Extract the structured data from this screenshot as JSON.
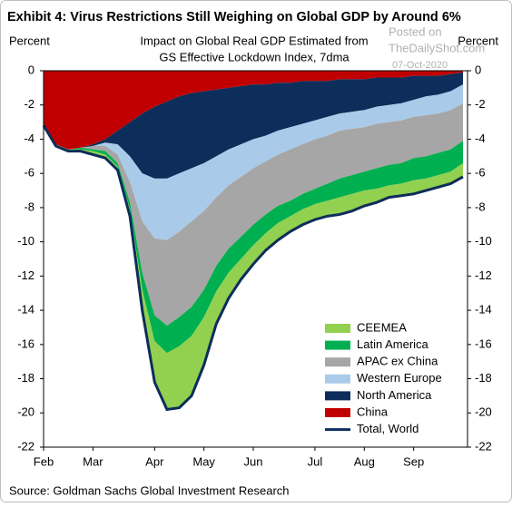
{
  "chart_data": {
    "type": "stacked_area",
    "title": "Exhibit 4: Virus Restrictions Still Weighing on Global GDP by Around 6%",
    "subtitle": [
      "Impact on Global Real GDP Estimated from",
      "GS Effective Lockdown Index, 7dma"
    ],
    "y_label": "Percent",
    "y2_label": "Percent",
    "source": "Source: Goldman Sachs Global Investment Research",
    "watermark": [
      "Posted on",
      "TheDailyShot.com",
      "07-Oct-2020"
    ],
    "categories": [
      "Feb",
      null,
      null,
      null,
      "Mar",
      null,
      null,
      null,
      null,
      "Apr",
      null,
      null,
      null,
      "May",
      null,
      null,
      null,
      "Jun",
      null,
      null,
      null,
      null,
      "Jul",
      null,
      null,
      null,
      "Aug",
      null,
      null,
      null,
      "Sep",
      null,
      null,
      null,
      null
    ],
    "series": [
      {
        "name": "CEEMEA",
        "color": "#92d050",
        "values": [
          0,
          -0.1,
          -0.1,
          -0.1,
          -0.2,
          -0.2,
          -0.2,
          -0.4,
          -1.2,
          -2.4,
          -3.3,
          -3.6,
          -3.5,
          -2.8,
          -1.9,
          -1.5,
          -1.2,
          -1.1,
          -1.0,
          -1.0,
          -0.9,
          -0.9,
          -0.9,
          -0.9,
          -1.0,
          -1.0,
          -0.9,
          -0.8,
          -0.7,
          -0.7,
          -0.8,
          -0.7,
          -0.7,
          -0.7,
          -0.8
        ]
      },
      {
        "name": "Latin America",
        "color": "#00b050",
        "values": [
          0,
          0,
          0,
          -0.1,
          -0.1,
          -0.2,
          -0.2,
          -0.4,
          -1.0,
          -1.5,
          -1.6,
          -1.7,
          -1.7,
          -1.6,
          -1.5,
          -1.4,
          -1.3,
          -1.2,
          -1.1,
          -1.0,
          -0.9,
          -0.9,
          -0.9,
          -1.0,
          -1.1,
          -1.1,
          -1.1,
          -1.2,
          -1.2,
          -1.2,
          -1.3,
          -1.3,
          -1.3,
          -1.3,
          -1.3
        ]
      },
      {
        "name": "APAC ex China",
        "color": "#a6a6a6",
        "values": [
          0,
          0,
          0,
          0,
          -0.2,
          -0.3,
          -0.5,
          -1.2,
          -3.0,
          -4.5,
          -5.0,
          -5.0,
          -5.0,
          -4.6,
          -4.0,
          -3.7,
          -3.5,
          -3.3,
          -3.1,
          -3.0,
          -3.0,
          -2.9,
          -2.9,
          -2.8,
          -2.8,
          -2.7,
          -2.6,
          -2.6,
          -2.5,
          -2.5,
          -2.4,
          -2.4,
          -2.3,
          -2.3,
          -2.2
        ]
      },
      {
        "name": "Western Europe",
        "color": "#a9cbe9",
        "values": [
          0,
          0,
          0,
          0,
          0,
          -0.2,
          -0.6,
          -1.5,
          -2.8,
          -3.5,
          -3.6,
          -3.4,
          -3.1,
          -2.8,
          -2.4,
          -2.1,
          -1.9,
          -1.7,
          -1.5,
          -1.4,
          -1.3,
          -1.2,
          -1.1,
          -1.1,
          -1.0,
          -1.0,
          -1.0,
          -1.0,
          -1.0,
          -1.0,
          -1.0,
          -1.1,
          -1.1,
          -1.1,
          -1.1
        ]
      },
      {
        "name": "North America",
        "color": "#0d2d5a",
        "values": [
          0,
          0,
          0,
          0,
          -0.1,
          -0.2,
          -0.8,
          -2.0,
          -3.5,
          -4.2,
          -4.5,
          -4.5,
          -4.4,
          -4.2,
          -3.9,
          -3.6,
          -3.4,
          -3.2,
          -3.0,
          -2.8,
          -2.6,
          -2.5,
          -2.3,
          -2.1,
          -2.0,
          -1.9,
          -1.8,
          -1.7,
          -1.6,
          -1.5,
          -1.4,
          -1.2,
          -1.1,
          -1.0,
          -0.7
        ]
      },
      {
        "name": "China",
        "color": "#c00000",
        "values": [
          -3.2,
          -4.3,
          -4.6,
          -4.5,
          -4.3,
          -4.0,
          -3.5,
          -3.0,
          -2.5,
          -2.1,
          -1.8,
          -1.5,
          -1.3,
          -1.2,
          -1.1,
          -1.0,
          -0.9,
          -0.8,
          -0.8,
          -0.7,
          -0.7,
          -0.6,
          -0.6,
          -0.6,
          -0.5,
          -0.5,
          -0.5,
          -0.4,
          -0.4,
          -0.4,
          -0.3,
          -0.3,
          -0.3,
          -0.2,
          -0.1
        ]
      },
      {
        "name": "Total, World",
        "color": "#0d2d5a",
        "type": "line",
        "values": [
          -3.2,
          -4.4,
          -4.7,
          -4.7,
          -4.9,
          -5.1,
          -5.8,
          -8.5,
          -14.0,
          -18.2,
          -19.8,
          -19.7,
          -19.0,
          -17.2,
          -14.8,
          -13.3,
          -12.2,
          -11.3,
          -10.5,
          -9.9,
          -9.4,
          -9.0,
          -8.7,
          -8.5,
          -8.4,
          -8.2,
          -7.9,
          -7.7,
          -7.4,
          -7.3,
          -7.2,
          -7.0,
          -6.8,
          -6.6,
          -6.2
        ]
      }
    ],
    "ylim": [
      -22,
      0
    ],
    "yticks": [
      0,
      -2,
      -4,
      -6,
      -8,
      -10,
      -12,
      -14,
      -16,
      -18,
      -20,
      -22
    ],
    "legend": "lower right",
    "grid": false
  }
}
